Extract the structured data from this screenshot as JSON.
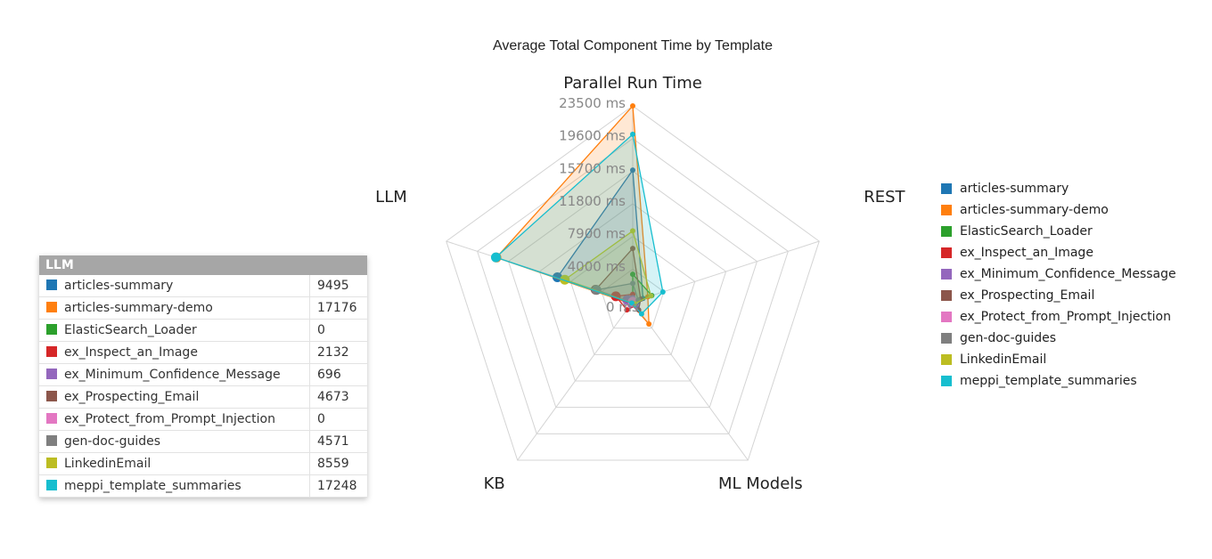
{
  "chart_data": {
    "type": "radar",
    "title": "Average Total Component Time by Template",
    "axes": [
      "Parallel Run Time",
      "REST",
      "ML Models",
      "KB",
      "LLM"
    ],
    "radial_ticks": [
      "0 ms",
      "4000 ms",
      "7900 ms",
      "11800 ms",
      "15700 ms",
      "19600 ms",
      "23500 ms"
    ],
    "radial_range": [
      0,
      23500
    ],
    "series": [
      {
        "name": "articles-summary",
        "color": "#1f77b4",
        "values": [
          15800,
          1300,
          700,
          200,
          9495
        ]
      },
      {
        "name": "articles-summary-demo",
        "color": "#ff7f0e",
        "values": [
          23500,
          1900,
          3300,
          300,
          17176
        ]
      },
      {
        "name": "ElasticSearch_Loader",
        "color": "#2ca02c",
        "values": [
          3300,
          2400,
          200,
          100,
          0
        ]
      },
      {
        "name": "ex_Inspect_an_Image",
        "color": "#d62728",
        "values": [
          900,
          200,
          600,
          1200,
          2132
        ]
      },
      {
        "name": "ex_Minimum_Confidence_Message",
        "color": "#9467bd",
        "values": [
          500,
          200,
          800,
          500,
          696
        ]
      },
      {
        "name": "ex_Prospecting_Email",
        "color": "#8c564b",
        "values": [
          6400,
          1000,
          1200,
          300,
          4673
        ]
      },
      {
        "name": "ex_Protect_from_Prompt_Injection",
        "color": "#e377c2",
        "values": [
          300,
          200,
          100,
          100,
          0
        ]
      },
      {
        "name": "gen-doc-guides",
        "color": "#7f7f7f",
        "values": [
          2200,
          700,
          400,
          200,
          4571
        ]
      },
      {
        "name": "LinkedinEmail",
        "color": "#bcbd22",
        "values": [
          8500,
          2300,
          300,
          200,
          8559
        ]
      },
      {
        "name": "meppi_template_summaries",
        "color": "#17becf",
        "values": [
          20100,
          3800,
          1800,
          200,
          17248
        ]
      }
    ]
  },
  "tooltip": {
    "header": "LLM",
    "rows": [
      {
        "name": "articles-summary",
        "value": "9495",
        "color": "#1f77b4"
      },
      {
        "name": "articles-summary-demo",
        "value": "17176",
        "color": "#ff7f0e"
      },
      {
        "name": "ElasticSearch_Loader",
        "value": "0",
        "color": "#2ca02c"
      },
      {
        "name": "ex_Inspect_an_Image",
        "value": "2132",
        "color": "#d62728"
      },
      {
        "name": "ex_Minimum_Confidence_Message",
        "value": "696",
        "color": "#9467bd"
      },
      {
        "name": "ex_Prospecting_Email",
        "value": "4673",
        "color": "#8c564b"
      },
      {
        "name": "ex_Protect_from_Prompt_Injection",
        "value": "0",
        "color": "#e377c2"
      },
      {
        "name": "gen-doc-guides",
        "value": "4571",
        "color": "#7f7f7f"
      },
      {
        "name": "LinkedinEmail",
        "value": "8559",
        "color": "#bcbd22"
      },
      {
        "name": "meppi_template_summaries",
        "value": "17248",
        "color": "#17becf"
      }
    ]
  }
}
